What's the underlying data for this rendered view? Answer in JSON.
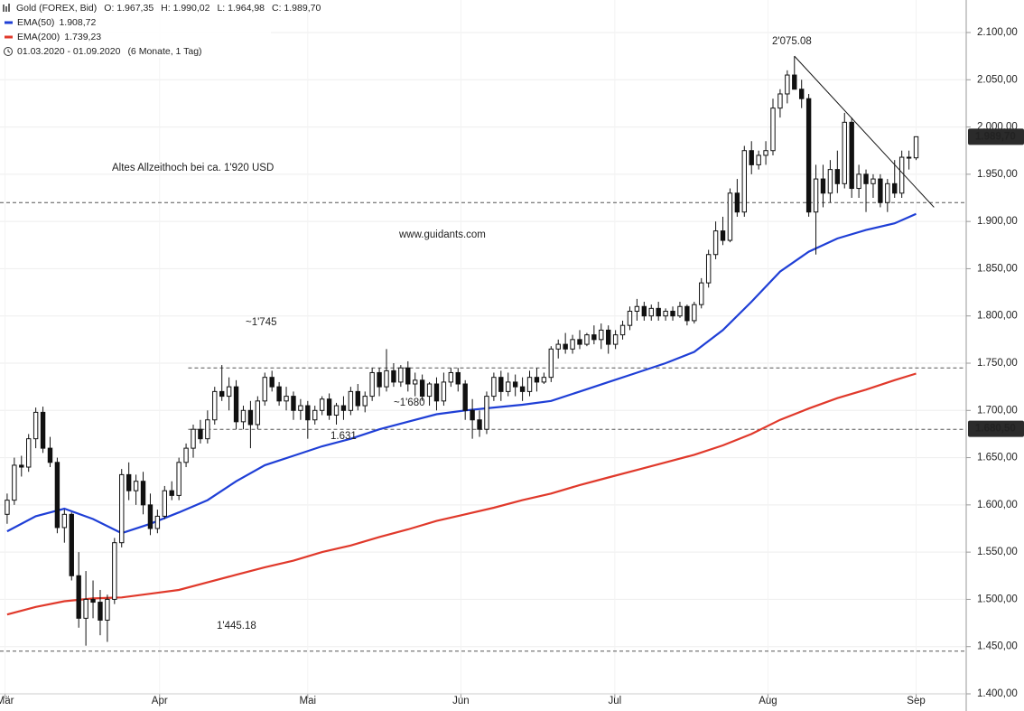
{
  "chart_data": {
    "type": "candlestick",
    "header": {
      "title": "Gold (FOREX, Bid)",
      "ohlc": [
        "O: 1.967,35",
        "H: 1.990,02",
        "L: 1.964,98",
        "C: 1.989,70"
      ],
      "period": "01.03.2020 - 01.09.2020",
      "period_note": "(6 Monate, 1 Tag)"
    },
    "candles": [
      [
        1590,
        1612,
        1580,
        1605
      ],
      [
        1605,
        1650,
        1600,
        1642
      ],
      [
        1642,
        1652,
        1630,
        1640
      ],
      [
        1640,
        1675,
        1635,
        1670
      ],
      [
        1670,
        1703,
        1660,
        1698
      ],
      [
        1698,
        1704,
        1655,
        1660
      ],
      [
        1660,
        1672,
        1640,
        1645
      ],
      [
        1645,
        1650,
        1570,
        1576
      ],
      [
        1576,
        1595,
        1560,
        1590
      ],
      [
        1590,
        1592,
        1520,
        1525
      ],
      [
        1525,
        1550,
        1470,
        1480
      ],
      [
        1480,
        1530,
        1451,
        1500
      ],
      [
        1500,
        1520,
        1480,
        1497
      ],
      [
        1497,
        1510,
        1462,
        1478
      ],
      [
        1478,
        1505,
        1455,
        1500
      ],
      [
        1500,
        1565,
        1495,
        1560
      ],
      [
        1560,
        1638,
        1555,
        1632
      ],
      [
        1632,
        1645,
        1605,
        1615
      ],
      [
        1615,
        1632,
        1600,
        1625
      ],
      [
        1625,
        1635,
        1590,
        1600
      ],
      [
        1600,
        1612,
        1568,
        1575
      ],
      [
        1575,
        1595,
        1570,
        1588
      ],
      [
        1588,
        1620,
        1585,
        1615
      ],
      [
        1615,
        1625,
        1605,
        1610
      ],
      [
        1610,
        1650,
        1605,
        1645
      ],
      [
        1645,
        1665,
        1640,
        1660
      ],
      [
        1660,
        1685,
        1650,
        1680
      ],
      [
        1680,
        1690,
        1665,
        1670
      ],
      [
        1670,
        1700,
        1665,
        1690
      ],
      [
        1690,
        1725,
        1685,
        1720
      ],
      [
        1720,
        1748,
        1710,
        1715
      ],
      [
        1715,
        1735,
        1700,
        1725
      ],
      [
        1725,
        1732,
        1680,
        1688
      ],
      [
        1688,
        1705,
        1680,
        1700
      ],
      [
        1700,
        1710,
        1660,
        1685
      ],
      [
        1685,
        1715,
        1680,
        1710
      ],
      [
        1710,
        1740,
        1705,
        1735
      ],
      [
        1735,
        1742,
        1720,
        1725
      ],
      [
        1725,
        1730,
        1705,
        1710
      ],
      [
        1710,
        1725,
        1700,
        1715
      ],
      [
        1715,
        1720,
        1690,
        1700
      ],
      [
        1700,
        1712,
        1690,
        1705
      ],
      [
        1705,
        1710,
        1670,
        1690
      ],
      [
        1690,
        1705,
        1685,
        1700
      ],
      [
        1700,
        1715,
        1695,
        1712
      ],
      [
        1712,
        1718,
        1690,
        1695
      ],
      [
        1695,
        1708,
        1685,
        1705
      ],
      [
        1705,
        1715,
        1690,
        1700
      ],
      [
        1700,
        1725,
        1695,
        1720
      ],
      [
        1720,
        1728,
        1700,
        1705
      ],
      [
        1705,
        1720,
        1698,
        1715
      ],
      [
        1715,
        1745,
        1710,
        1740
      ],
      [
        1740,
        1745,
        1715,
        1725
      ],
      [
        1725,
        1765,
        1720,
        1742
      ],
      [
        1742,
        1750,
        1725,
        1730
      ],
      [
        1730,
        1748,
        1725,
        1745
      ],
      [
        1745,
        1752,
        1720,
        1728
      ],
      [
        1728,
        1740,
        1715,
        1732
      ],
      [
        1732,
        1738,
        1710,
        1715
      ],
      [
        1715,
        1730,
        1705,
        1728
      ],
      [
        1728,
        1735,
        1700,
        1710
      ],
      [
        1710,
        1740,
        1705,
        1730
      ],
      [
        1730,
        1745,
        1725,
        1740
      ],
      [
        1740,
        1745,
        1720,
        1728
      ],
      [
        1728,
        1732,
        1690,
        1700
      ],
      [
        1700,
        1712,
        1670,
        1690
      ],
      [
        1690,
        1700,
        1672,
        1680
      ],
      [
        1680,
        1720,
        1675,
        1715
      ],
      [
        1715,
        1740,
        1710,
        1735
      ],
      [
        1735,
        1742,
        1710,
        1720
      ],
      [
        1720,
        1740,
        1715,
        1730
      ],
      [
        1730,
        1738,
        1715,
        1725
      ],
      [
        1725,
        1735,
        1710,
        1720
      ],
      [
        1720,
        1742,
        1715,
        1735
      ],
      [
        1735,
        1745,
        1720,
        1730
      ],
      [
        1730,
        1740,
        1728,
        1735
      ],
      [
        1735,
        1768,
        1730,
        1765
      ],
      [
        1765,
        1775,
        1755,
        1770
      ],
      [
        1770,
        1782,
        1760,
        1765
      ],
      [
        1765,
        1780,
        1760,
        1775
      ],
      [
        1775,
        1785,
        1765,
        1770
      ],
      [
        1770,
        1782,
        1768,
        1780
      ],
      [
        1780,
        1790,
        1770,
        1775
      ],
      [
        1775,
        1792,
        1765,
        1785
      ],
      [
        1785,
        1790,
        1760,
        1770
      ],
      [
        1770,
        1785,
        1765,
        1780
      ],
      [
        1780,
        1795,
        1775,
        1790
      ],
      [
        1790,
        1810,
        1785,
        1805
      ],
      [
        1805,
        1818,
        1795,
        1810
      ],
      [
        1810,
        1815,
        1795,
        1800
      ],
      [
        1800,
        1812,
        1795,
        1808
      ],
      [
        1808,
        1815,
        1795,
        1800
      ],
      [
        1800,
        1808,
        1795,
        1805
      ],
      [
        1805,
        1810,
        1795,
        1800
      ],
      [
        1800,
        1815,
        1798,
        1810
      ],
      [
        1810,
        1812,
        1790,
        1795
      ],
      [
        1795,
        1815,
        1792,
        1812
      ],
      [
        1812,
        1840,
        1808,
        1835
      ],
      [
        1835,
        1870,
        1830,
        1865
      ],
      [
        1865,
        1900,
        1860,
        1890
      ],
      [
        1890,
        1905,
        1875,
        1880
      ],
      [
        1880,
        1935,
        1878,
        1930
      ],
      [
        1930,
        1945,
        1905,
        1910
      ],
      [
        1910,
        1980,
        1905,
        1975
      ],
      [
        1975,
        1985,
        1950,
        1960
      ],
      [
        1960,
        1975,
        1955,
        1970
      ],
      [
        1970,
        1985,
        1960,
        1975
      ],
      [
        1975,
        2030,
        1970,
        2020
      ],
      [
        2020,
        2040,
        2010,
        2035
      ],
      [
        2035,
        2060,
        2025,
        2055
      ],
      [
        2055,
        2075,
        2040,
        2040
      ],
      [
        2040,
        2050,
        2020,
        2030
      ],
      [
        2030,
        2035,
        1905,
        1910
      ],
      [
        1910,
        1960,
        1865,
        1945
      ],
      [
        1945,
        1960,
        1915,
        1930
      ],
      [
        1930,
        1965,
        1920,
        1955
      ],
      [
        1955,
        1975,
        1930,
        1940
      ],
      [
        1940,
        2015,
        1935,
        2005
      ],
      [
        2005,
        2010,
        1925,
        1935
      ],
      [
        1935,
        1960,
        1925,
        1950
      ],
      [
        1950,
        1955,
        1910,
        1940
      ],
      [
        1940,
        1950,
        1925,
        1945
      ],
      [
        1945,
        1950,
        1915,
        1920
      ],
      [
        1920,
        1945,
        1910,
        1940
      ],
      [
        1940,
        1965,
        1925,
        1930
      ],
      [
        1930,
        1975,
        1925,
        1968
      ],
      [
        1968,
        1975,
        1955,
        1968
      ],
      [
        1967.35,
        1990.02,
        1964.98,
        1989.7
      ]
    ],
    "series": [
      {
        "name": "EMA(50)",
        "value_label": "1.908,72",
        "color": "#1f3fd6",
        "x": [
          0,
          4,
          8,
          12,
          16,
          20,
          24,
          28,
          32,
          36,
          40,
          44,
          48,
          52,
          56,
          60,
          64,
          68,
          72,
          76,
          80,
          84,
          88,
          92,
          96,
          100,
          104,
          108,
          112,
          116,
          120,
          124,
          127
        ],
        "values": [
          1572,
          1588,
          1596,
          1585,
          1570,
          1580,
          1592,
          1605,
          1625,
          1642,
          1652,
          1662,
          1670,
          1680,
          1688,
          1696,
          1700,
          1703,
          1706,
          1710,
          1720,
          1730,
          1740,
          1750,
          1762,
          1785,
          1815,
          1847,
          1868,
          1882,
          1891,
          1898,
          1908
        ]
      },
      {
        "name": "EMA(200)",
        "value_label": "1.739,23",
        "color": "#e0392b",
        "x": [
          0,
          4,
          8,
          12,
          16,
          20,
          24,
          28,
          32,
          36,
          40,
          44,
          48,
          52,
          56,
          60,
          64,
          68,
          72,
          76,
          80,
          84,
          88,
          92,
          96,
          100,
          104,
          108,
          112,
          116,
          120,
          124,
          127
        ],
        "values": [
          1484,
          1492,
          1498,
          1501,
          1502,
          1506,
          1510,
          1518,
          1526,
          1534,
          1541,
          1550,
          1557,
          1566,
          1574,
          1583,
          1590,
          1597,
          1605,
          1612,
          1621,
          1629,
          1637,
          1645,
          1653,
          1663,
          1675,
          1690,
          1702,
          1713,
          1722,
          1732,
          1739
        ]
      }
    ],
    "levels": [
      1920,
      1745,
      1680,
      1445.18
    ],
    "trendline": {
      "x": [
        110,
        129.5
      ],
      "values": [
        2075,
        1915
      ]
    },
    "annotations": [
      "Altes Allzeithoch bei ca. 1'920 USD",
      "~1'745",
      "~1'680",
      "1.631",
      "1'445.18",
      "2'075.08",
      "www.guidants.com"
    ],
    "price_labels": [
      {
        "value": 1989.7,
        "label": "1.989,70"
      },
      {
        "value": 1680.5,
        "label": "1.680,50"
      }
    ],
    "xlim": [
      -1,
      134
    ],
    "xticks": [
      {
        "value": -0.3,
        "label": "Mär"
      },
      {
        "value": 21.3,
        "label": "Apr"
      },
      {
        "value": 42.0,
        "label": "Mai"
      },
      {
        "value": 63.4,
        "label": "Jun"
      },
      {
        "value": 84.9,
        "label": "Jul"
      },
      {
        "value": 106.3,
        "label": "Aug"
      },
      {
        "value": 127.0,
        "label": "Sep"
      }
    ],
    "ylim": [
      1400,
      2100
    ],
    "yticks": [
      {
        "value": 1400,
        "label": "1.400,00"
      },
      {
        "value": 1450,
        "label": "1.450,00"
      },
      {
        "value": 1500,
        "label": "1.500,00"
      },
      {
        "value": 1550,
        "label": "1.550,00"
      },
      {
        "value": 1600,
        "label": "1.600,00"
      },
      {
        "value": 1650,
        "label": "1.650,00"
      },
      {
        "value": 1700,
        "label": "1.700,00"
      },
      {
        "value": 1750,
        "label": "1.750,00"
      },
      {
        "value": 1800,
        "label": "1.800,00"
      },
      {
        "value": 1850,
        "label": "1.850,00"
      },
      {
        "value": 1900,
        "label": "1.900,00"
      },
      {
        "value": 1950,
        "label": "1.950,00"
      },
      {
        "value": 2000,
        "label": "2.000,00"
      },
      {
        "value": 2050,
        "label": "2.050,00"
      },
      {
        "value": 2100,
        "label": "2.100,00"
      }
    ],
    "grid": true
  }
}
